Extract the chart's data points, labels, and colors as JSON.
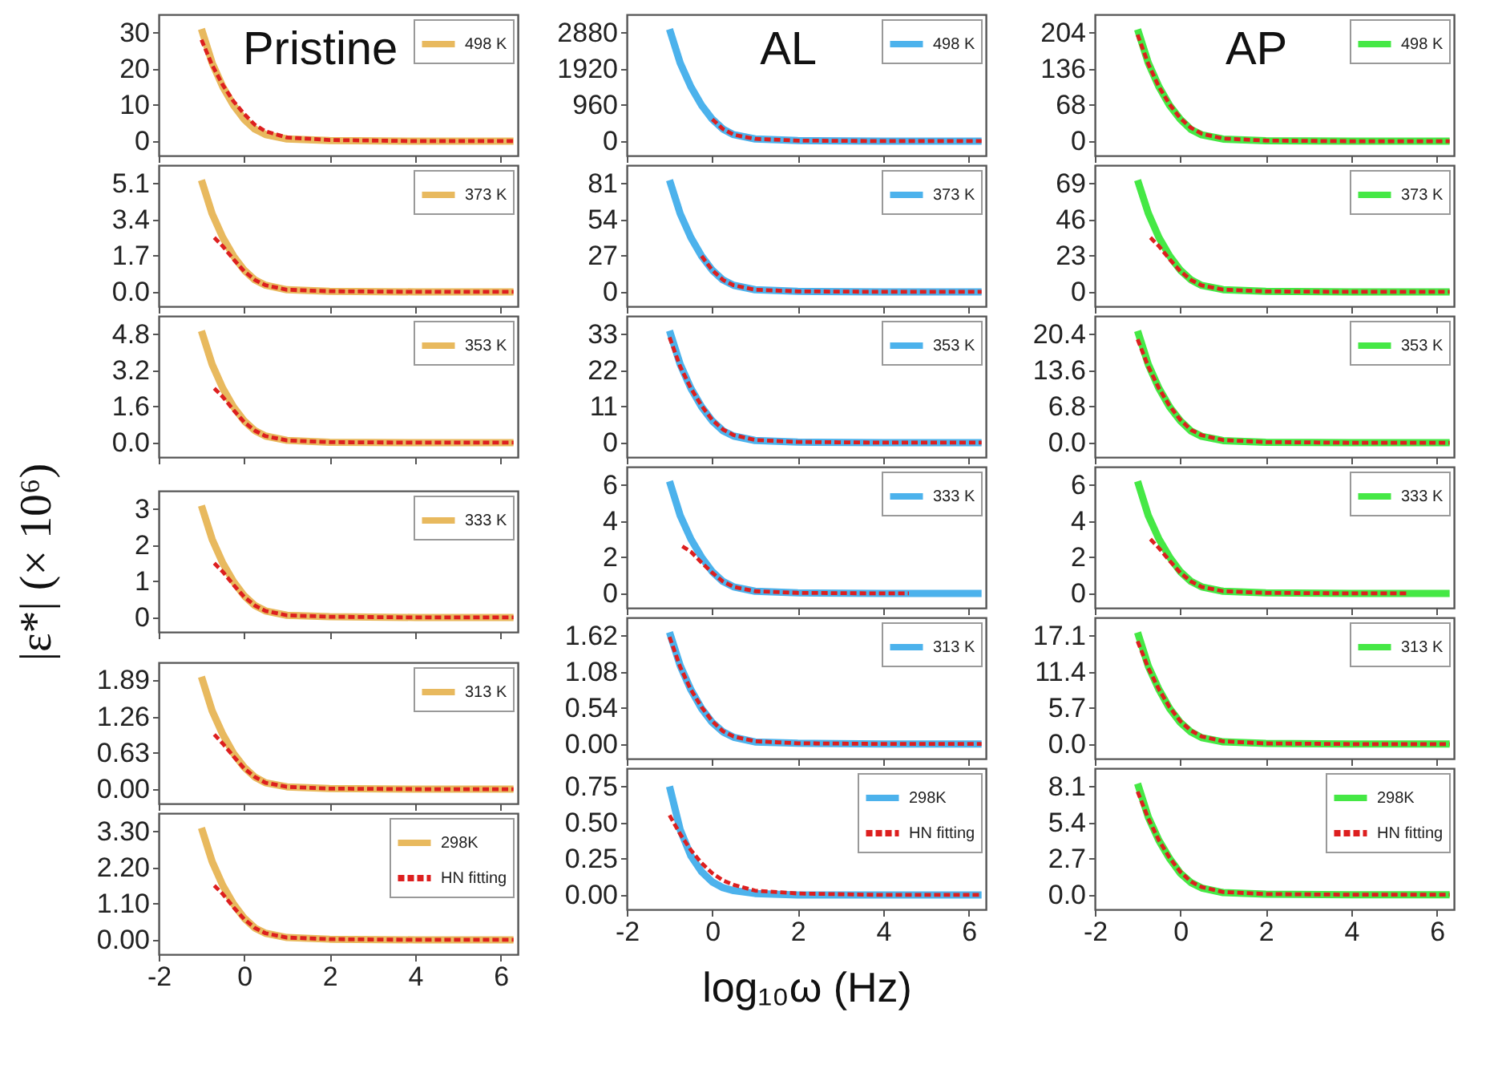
{
  "chart_data": [
    {
      "type": "line",
      "annotations": [
        "Pristine"
      ],
      "x": [
        -1,
        -0.75,
        -0.5,
        -0.25,
        0,
        0.25,
        0.5,
        1,
        2,
        4,
        6.3
      ],
      "xlim": [
        -2,
        6.4
      ],
      "xticks": [
        -2,
        0,
        2,
        4,
        6
      ],
      "ylim": [
        -4,
        35
      ],
      "yticks": [
        0,
        10,
        20,
        30
      ],
      "tick_labels": "y",
      "legend": "top right",
      "series": [
        {
          "name": "498 K",
          "color": "#e8b95e",
          "line_style": "solid",
          "values": [
            31,
            21.6,
            15,
            9.9,
            6,
            3.3,
            1.8,
            0.6,
            0.15,
            0,
            0
          ]
        },
        {
          "color": "#dd1f1f",
          "line_style": "dashed",
          "values": [
            28,
            21,
            15.5,
            11,
            7.5,
            4.5,
            2.7,
            1,
            0.3,
            0,
            0
          ]
        }
      ]
    },
    {
      "type": "line",
      "annotations": [
        "AL"
      ],
      "x": [
        -1,
        -0.75,
        -0.5,
        -0.25,
        0,
        0.25,
        0.5,
        1,
        2,
        4,
        6.3
      ],
      "xlim": [
        -2,
        6.4
      ],
      "xticks": [
        -2,
        0,
        2,
        4,
        6
      ],
      "ylim": [
        -384,
        3360
      ],
      "yticks": [
        0,
        960,
        1920,
        2880
      ],
      "tick_labels": "y",
      "legend": "top right",
      "series": [
        {
          "name": "498 K",
          "color": "#4cb2ec",
          "line_style": "solid",
          "values": [
            2970,
            2070,
            1440,
            950,
            580,
            320,
            170,
            58,
            14,
            0,
            0
          ]
        },
        {
          "color": "#dd1f1f",
          "line_style": "dashed",
          "x": [
            0,
            0.25,
            0.5,
            1,
            2,
            4,
            6.3
          ],
          "values": [
            580,
            320,
            170,
            58,
            14,
            0,
            0
          ]
        }
      ]
    },
    {
      "type": "line",
      "annotations": [
        "AP"
      ],
      "x": [
        -1,
        -0.75,
        -0.5,
        -0.25,
        0,
        0.25,
        0.5,
        1,
        2,
        4,
        6.3
      ],
      "xlim": [
        -2,
        6.4
      ],
      "xticks": [
        -2,
        0,
        2,
        4,
        6
      ],
      "ylim": [
        -27,
        238
      ],
      "yticks": [
        0,
        68,
        136,
        204
      ],
      "tick_labels": "y",
      "legend": "top right",
      "series": [
        {
          "name": "498 K",
          "color": "#45e845",
          "line_style": "solid",
          "values": [
            210,
            147,
            102,
            67,
            41,
            22,
            12,
            4,
            1,
            0,
            0
          ]
        },
        {
          "color": "#dd1f1f",
          "line_style": "dashed",
          "values": [
            200,
            145,
            102,
            69,
            43,
            25,
            14,
            5,
            1.2,
            0,
            0
          ]
        }
      ]
    },
    {
      "type": "line",
      "x": [
        -1,
        -0.75,
        -0.5,
        -0.25,
        0,
        0.25,
        0.5,
        1,
        2,
        4,
        6.3
      ],
      "xlim": [
        -2,
        6.4
      ],
      "xticks": [
        -2,
        0,
        2,
        4,
        6
      ],
      "ylim": [
        -0.68,
        5.95
      ],
      "yticks": [
        {
          "value": 0,
          "label": "0.0"
        },
        1.7,
        3.4,
        5.1
      ],
      "tick_labels": "y",
      "legend": "top right",
      "series": [
        {
          "name": "373 K",
          "color": "#e8b95e",
          "line_style": "solid",
          "values": [
            5.25,
            3.67,
            2.55,
            1.68,
            1.02,
            0.56,
            0.31,
            0.1,
            0.03,
            0,
            0
          ]
        },
        {
          "color": "#dd1f1f",
          "line_style": "dashed",
          "x": [
            -0.7,
            -0.5,
            -0.25,
            0,
            0.25,
            0.5,
            1,
            2,
            4,
            6.3
          ],
          "values": [
            2.55,
            2.14,
            1.53,
            0.97,
            0.56,
            0.31,
            0.1,
            0.03,
            0,
            0
          ]
        }
      ]
    },
    {
      "type": "line",
      "x": [
        -1,
        -0.75,
        -0.5,
        -0.25,
        0,
        0.25,
        0.5,
        1,
        2,
        4,
        6.3
      ],
      "xlim": [
        -2,
        6.4
      ],
      "xticks": [
        -2,
        0,
        2,
        4,
        6
      ],
      "ylim": [
        -10.8,
        94.5
      ],
      "yticks": [
        0,
        27,
        54,
        81
      ],
      "tick_labels": "y",
      "legend": "top right",
      "series": [
        {
          "name": "373 K",
          "color": "#4cb2ec",
          "line_style": "solid",
          "values": [
            83.4,
            58.3,
            40.5,
            26.7,
            16.2,
            8.9,
            4.9,
            1.6,
            0.4,
            0,
            0
          ]
        },
        {
          "color": "#dd1f1f",
          "line_style": "dashed",
          "x": [
            -0.25,
            0,
            0.25,
            0.5,
            1,
            2,
            4,
            6.3
          ],
          "values": [
            26.7,
            16.2,
            8.9,
            4.9,
            1.6,
            0.4,
            0,
            0
          ]
        }
      ]
    },
    {
      "type": "line",
      "x": [
        -1,
        -0.75,
        -0.5,
        -0.25,
        0,
        0.25,
        0.5,
        1,
        2,
        4,
        6.3
      ],
      "xlim": [
        -2,
        6.4
      ],
      "xticks": [
        -2,
        0,
        2,
        4,
        6
      ],
      "ylim": [
        -9.2,
        80.5
      ],
      "yticks": [
        0,
        23,
        46,
        69
      ],
      "tick_labels": "y",
      "legend": "top right",
      "series": [
        {
          "name": "373 K",
          "color": "#45e845",
          "line_style": "solid",
          "values": [
            71,
            50,
            34.5,
            22.8,
            13.8,
            7.6,
            4.1,
            1.4,
            0.3,
            0,
            0
          ]
        },
        {
          "color": "#dd1f1f",
          "line_style": "dashed",
          "x": [
            -0.7,
            -0.5,
            -0.25,
            0,
            0.25,
            0.5,
            1,
            2,
            4,
            6.3
          ],
          "values": [
            34.5,
            29,
            20.7,
            13.1,
            7.6,
            4.1,
            1.4,
            0.3,
            0,
            0
          ]
        }
      ]
    },
    {
      "type": "line",
      "x": [
        -1,
        -0.75,
        -0.5,
        -0.25,
        0,
        0.25,
        0.5,
        1,
        2,
        4,
        6.3
      ],
      "xlim": [
        -2,
        6.4
      ],
      "xticks": [
        -2,
        0,
        2,
        4,
        6
      ],
      "ylim": [
        -0.64,
        5.6
      ],
      "yticks": [
        {
          "value": 0,
          "label": "0.0"
        },
        1.6,
        3.2,
        4.8
      ],
      "tick_labels": "y",
      "legend": "top right",
      "series": [
        {
          "name": "353 K",
          "color": "#e8b95e",
          "line_style": "solid",
          "values": [
            4.94,
            3.46,
            2.4,
            1.58,
            0.96,
            0.53,
            0.29,
            0.1,
            0.02,
            0,
            0
          ]
        },
        {
          "color": "#dd1f1f",
          "line_style": "dashed",
          "x": [
            -0.7,
            -0.5,
            -0.25,
            0,
            0.25,
            0.5,
            1,
            2,
            4,
            6.3
          ],
          "values": [
            2.4,
            2.02,
            1.44,
            0.91,
            0.53,
            0.29,
            0.1,
            0.02,
            0,
            0
          ]
        }
      ]
    },
    {
      "type": "line",
      "x": [
        -1,
        -0.75,
        -0.5,
        -0.25,
        0,
        0.25,
        0.5,
        1,
        2,
        4,
        6.3
      ],
      "xlim": [
        -2,
        6.4
      ],
      "xticks": [
        -2,
        0,
        2,
        4,
        6
      ],
      "ylim": [
        -4.4,
        38.5
      ],
      "yticks": [
        0,
        11,
        22,
        33
      ],
      "tick_labels": "y",
      "legend": "top right",
      "series": [
        {
          "name": "353 K",
          "color": "#4cb2ec",
          "line_style": "solid",
          "values": [
            34,
            23.8,
            16.5,
            10.9,
            6.6,
            3.6,
            2,
            0.66,
            0.17,
            0,
            0
          ]
        },
        {
          "color": "#dd1f1f",
          "line_style": "dashed",
          "values": [
            32,
            23.1,
            16.5,
            11.2,
            6.9,
            4,
            2.3,
            0.8,
            0.2,
            0,
            0
          ]
        }
      ]
    },
    {
      "type": "line",
      "x": [
        -1,
        -0.75,
        -0.5,
        -0.25,
        0,
        0.25,
        0.5,
        1,
        2,
        4,
        6.3
      ],
      "xlim": [
        -2,
        6.4
      ],
      "xticks": [
        -2,
        0,
        2,
        4,
        6
      ],
      "ylim": [
        -2.7,
        23.8
      ],
      "yticks": [
        {
          "value": 0,
          "label": "0.0"
        },
        6.8,
        13.6,
        20.4
      ],
      "tick_labels": "y",
      "legend": "top right",
      "series": [
        {
          "name": "353 K",
          "color": "#45e845",
          "line_style": "solid",
          "values": [
            21,
            14.7,
            10.2,
            6.7,
            4.1,
            2.2,
            1.2,
            0.4,
            0.1,
            0,
            0
          ]
        },
        {
          "color": "#dd1f1f",
          "line_style": "dashed",
          "values": [
            19.4,
            14.3,
            10.2,
            6.9,
            4.3,
            2.4,
            1.4,
            0.5,
            0.12,
            0,
            0
          ]
        }
      ]
    },
    {
      "type": "line",
      "ylabel": "|ε*| (× 10⁶)",
      "x": [
        -1,
        -0.75,
        -0.5,
        -0.25,
        0,
        0.25,
        0.5,
        1,
        2,
        4,
        6.3
      ],
      "xlim": [
        -2,
        6.4
      ],
      "xticks": [
        -2,
        0,
        2,
        4,
        6
      ],
      "ylim": [
        -0.4,
        3.5
      ],
      "yticks": [
        0,
        1,
        2,
        3
      ],
      "tick_labels": "y",
      "legend": "top right",
      "series": [
        {
          "name": "333 K",
          "color": "#e8b95e",
          "line_style": "solid",
          "values": [
            3.09,
            2.16,
            1.5,
            0.99,
            0.6,
            0.33,
            0.18,
            0.06,
            0.02,
            0,
            0
          ]
        },
        {
          "color": "#dd1f1f",
          "line_style": "dashed",
          "x": [
            -0.7,
            -0.5,
            -0.25,
            0,
            0.25,
            0.5,
            1,
            2,
            4,
            6.3
          ],
          "values": [
            1.5,
            1.26,
            0.9,
            0.57,
            0.33,
            0.18,
            0.06,
            0.02,
            0,
            0
          ]
        }
      ]
    },
    {
      "type": "line",
      "x": [
        -1,
        -0.75,
        -0.5,
        -0.25,
        0,
        0.25,
        0.5,
        1,
        2,
        4,
        6.3
      ],
      "xlim": [
        -2,
        6.4
      ],
      "xticks": [
        -2,
        0,
        2,
        4,
        6
      ],
      "ylim": [
        -0.8,
        7
      ],
      "yticks": [
        0,
        2,
        4,
        6
      ],
      "tick_labels": "y",
      "legend": "top right",
      "series": [
        {
          "name": "333 K",
          "color": "#4cb2ec",
          "line_style": "solid",
          "values": [
            6.2,
            4.3,
            3,
            2,
            1.2,
            0.66,
            0.36,
            0.12,
            0.03,
            0,
            0
          ]
        },
        {
          "color": "#dd1f1f",
          "line_style": "dashed",
          "x": [
            -0.7,
            -0.5,
            -0.25,
            0,
            0.25,
            0.5,
            1,
            2,
            4,
            4.6
          ],
          "values": [
            2.6,
            2.3,
            1.7,
            1.14,
            0.66,
            0.36,
            0.12,
            0.03,
            0,
            0
          ]
        }
      ]
    },
    {
      "type": "line",
      "x": [
        -1,
        -0.75,
        -0.5,
        -0.25,
        0,
        0.25,
        0.5,
        1,
        2,
        4,
        6.3
      ],
      "xlim": [
        -2,
        6.4
      ],
      "xticks": [
        -2,
        0,
        2,
        4,
        6
      ],
      "ylim": [
        -0.8,
        7
      ],
      "yticks": [
        0,
        2,
        4,
        6
      ],
      "tick_labels": "y",
      "legend": "top right",
      "series": [
        {
          "name": "333 K",
          "color": "#45e845",
          "line_style": "solid",
          "values": [
            6.2,
            4.3,
            3,
            2,
            1.2,
            0.66,
            0.36,
            0.12,
            0.03,
            0,
            0
          ]
        },
        {
          "color": "#dd1f1f",
          "line_style": "dashed",
          "x": [
            -0.7,
            -0.5,
            -0.25,
            0,
            0.25,
            0.5,
            1,
            2,
            4,
            5.3
          ],
          "values": [
            3,
            2.5,
            1.8,
            1.14,
            0.66,
            0.36,
            0.12,
            0.03,
            0,
            0
          ]
        }
      ]
    },
    {
      "type": "line",
      "x": [
        -1,
        -0.75,
        -0.5,
        -0.25,
        0,
        0.25,
        0.5,
        1,
        2,
        4,
        6.3
      ],
      "xlim": [
        -2,
        6.4
      ],
      "xticks": [
        -2,
        0,
        2,
        4,
        6
      ],
      "ylim": [
        -0.25,
        2.2
      ],
      "yticks": [
        {
          "value": 0,
          "label": "0.00"
        },
        0.63,
        1.26,
        1.89
      ],
      "tick_labels": "y",
      "legend": "top right",
      "series": [
        {
          "name": "313 K",
          "color": "#e8b95e",
          "line_style": "solid",
          "values": [
            1.95,
            1.36,
            0.95,
            0.62,
            0.38,
            0.21,
            0.11,
            0.04,
            0.01,
            0,
            0
          ]
        },
        {
          "color": "#dd1f1f",
          "line_style": "dashed",
          "x": [
            -0.7,
            -0.5,
            -0.25,
            0,
            0.25,
            0.5,
            1,
            2,
            4,
            6.3
          ],
          "values": [
            0.95,
            0.79,
            0.57,
            0.36,
            0.21,
            0.11,
            0.04,
            0.01,
            0,
            0
          ]
        }
      ]
    },
    {
      "type": "line",
      "x": [
        -1,
        -0.75,
        -0.5,
        -0.25,
        0,
        0.25,
        0.5,
        1,
        2,
        4,
        6.3
      ],
      "xlim": [
        -2,
        6.4
      ],
      "xticks": [
        -2,
        0,
        2,
        4,
        6
      ],
      "ylim": [
        -0.22,
        1.89
      ],
      "yticks": [
        {
          "value": 0,
          "label": "0.00"
        },
        0.54,
        1.08,
        1.62
      ],
      "tick_labels": "y",
      "legend": "top right",
      "series": [
        {
          "name": "313 K",
          "color": "#4cb2ec",
          "line_style": "solid",
          "values": [
            1.67,
            1.17,
            0.81,
            0.53,
            0.32,
            0.18,
            0.1,
            0.03,
            0.01,
            0,
            0
          ]
        },
        {
          "color": "#dd1f1f",
          "line_style": "dashed",
          "values": [
            1.6,
            1.15,
            0.81,
            0.55,
            0.34,
            0.19,
            0.11,
            0.04,
            0.01,
            0,
            0
          ]
        }
      ]
    },
    {
      "type": "line",
      "x": [
        -1,
        -0.75,
        -0.5,
        -0.25,
        0,
        0.25,
        0.5,
        1,
        2,
        4,
        6.3
      ],
      "xlim": [
        -2,
        6.4
      ],
      "xticks": [
        -2,
        0,
        2,
        4,
        6
      ],
      "ylim": [
        -2.3,
        19.95
      ],
      "yticks": [
        {
          "value": 0,
          "label": "0.0"
        },
        5.7,
        11.4,
        17.1
      ],
      "tick_labels": "y",
      "legend": "top right",
      "series": [
        {
          "name": "313 K",
          "color": "#45e845",
          "line_style": "solid",
          "values": [
            17.6,
            12.3,
            8.6,
            5.6,
            3.4,
            1.9,
            1,
            0.34,
            0.09,
            0,
            0
          ]
        },
        {
          "color": "#dd1f1f",
          "line_style": "dashed",
          "values": [
            16.2,
            12,
            8.6,
            5.8,
            3.6,
            2.1,
            1.2,
            0.43,
            0.1,
            0,
            0
          ]
        }
      ]
    },
    {
      "type": "line",
      "x": [
        -1,
        -0.75,
        -0.5,
        -0.25,
        0,
        0.25,
        0.5,
        1,
        2,
        4,
        6.3
      ],
      "xlim": [
        -2,
        6.4
      ],
      "xticks": [
        -2,
        0,
        2,
        4,
        6
      ],
      "ylim": [
        -0.44,
        3.85
      ],
      "yticks": [
        {
          "value": 0,
          "label": "0.00"
        },
        {
          "value": 1.1,
          "label": "1.10"
        },
        {
          "value": 2.2,
          "label": "2.20"
        },
        {
          "value": 3.3,
          "label": "3.30"
        }
      ],
      "legend": "top right",
      "series": [
        {
          "name": "298K",
          "color": "#e8b95e",
          "line_style": "solid",
          "values": [
            3.4,
            2.38,
            1.65,
            1.09,
            0.66,
            0.36,
            0.2,
            0.07,
            0.02,
            0,
            0
          ]
        },
        {
          "name": "HN fitting",
          "color": "#dd1f1f",
          "line_style": "dashed",
          "x": [
            -0.7,
            -0.5,
            -0.25,
            0,
            0.25,
            0.5,
            1,
            2,
            4,
            6.3
          ],
          "values": [
            1.65,
            1.39,
            0.99,
            0.63,
            0.36,
            0.2,
            0.07,
            0.02,
            0,
            0
          ]
        }
      ]
    },
    {
      "type": "line",
      "xlabel": "log₁₀ω (Hz)",
      "x": [
        -1,
        -0.75,
        -0.5,
        -0.25,
        0,
        0.25,
        0.5,
        1,
        2,
        4,
        6.3
      ],
      "xlim": [
        -2,
        6.4
      ],
      "xticks": [
        -2,
        0,
        2,
        4,
        6
      ],
      "ylim": [
        -0.1,
        0.875
      ],
      "yticks": [
        {
          "value": 0,
          "label": "0.00"
        },
        0.25,
        {
          "value": 0.5,
          "label": "0.50"
        },
        0.75
      ],
      "legend": "top right",
      "series": [
        {
          "name": "298K",
          "color": "#4cb2ec",
          "line_style": "solid",
          "values": [
            0.75,
            0.45,
            0.27,
            0.16,
            0.09,
            0.05,
            0.03,
            0.01,
            0,
            0,
            0
          ]
        },
        {
          "name": "HN fitting",
          "color": "#dd1f1f",
          "line_style": "dashed",
          "values": [
            0.55,
            0.42,
            0.31,
            0.22,
            0.15,
            0.1,
            0.07,
            0.03,
            0.01,
            0,
            0
          ]
        }
      ]
    },
    {
      "type": "line",
      "x": [
        -1,
        -0.75,
        -0.5,
        -0.25,
        0,
        0.25,
        0.5,
        1,
        2,
        4,
        6.3
      ],
      "xlim": [
        -2,
        6.4
      ],
      "xticks": [
        -2,
        0,
        2,
        4,
        6
      ],
      "ylim": [
        -1.1,
        9.45
      ],
      "yticks": [
        {
          "value": 0,
          "label": "0.0"
        },
        2.7,
        5.4,
        8.1
      ],
      "legend": "top right",
      "series": [
        {
          "name": "298K",
          "color": "#45e845",
          "line_style": "solid",
          "values": [
            8.3,
            5.8,
            4.05,
            2.7,
            1.6,
            0.9,
            0.5,
            0.16,
            0.04,
            0,
            0
          ]
        },
        {
          "name": "HN fitting",
          "color": "#dd1f1f",
          "line_style": "dashed",
          "values": [
            7.7,
            5.7,
            4.05,
            2.75,
            1.7,
            0.97,
            0.57,
            0.2,
            0.05,
            0,
            0
          ]
        }
      ]
    }
  ]
}
